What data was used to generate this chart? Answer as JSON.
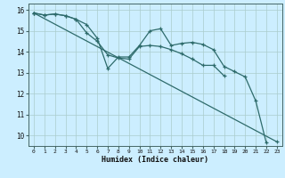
{
  "title": "",
  "xlabel": "Humidex (Indice chaleur)",
  "ylabel": "",
  "bg_color": "#cceeff",
  "line_color": "#2e6b6b",
  "grid_color": "#aacccc",
  "xlim": [
    -0.5,
    23.5
  ],
  "ylim": [
    9.5,
    16.3
  ],
  "yticks": [
    10,
    11,
    12,
    13,
    14,
    15,
    16
  ],
  "xticks": [
    0,
    1,
    2,
    3,
    4,
    5,
    6,
    7,
    8,
    9,
    10,
    11,
    12,
    13,
    14,
    15,
    16,
    17,
    18,
    19,
    20,
    21,
    22,
    23
  ],
  "series": [
    {
      "x": [
        0,
        1,
        2,
        3,
        4,
        5,
        6,
        7,
        8,
        9,
        10,
        11,
        12,
        13,
        14,
        15,
        16,
        17,
        18,
        19,
        20,
        21,
        22
      ],
      "y": [
        15.85,
        15.75,
        15.8,
        15.72,
        15.55,
        15.3,
        14.65,
        13.2,
        13.75,
        13.75,
        14.3,
        15.0,
        15.1,
        14.3,
        14.4,
        14.45,
        14.35,
        14.1,
        13.3,
        13.05,
        12.8,
        11.65,
        9.65
      ]
    },
    {
      "x": [
        0,
        1,
        2,
        3,
        4,
        5,
        6,
        7,
        8,
        9,
        10,
        11,
        12,
        13,
        14,
        15,
        16,
        17,
        18
      ],
      "y": [
        15.85,
        15.75,
        15.8,
        15.72,
        15.55,
        14.9,
        14.5,
        13.85,
        13.7,
        13.65,
        14.25,
        14.3,
        14.25,
        14.1,
        13.9,
        13.65,
        13.35,
        13.35,
        12.85
      ]
    },
    {
      "x": [
        0,
        23
      ],
      "y": [
        15.85,
        9.7
      ]
    }
  ]
}
